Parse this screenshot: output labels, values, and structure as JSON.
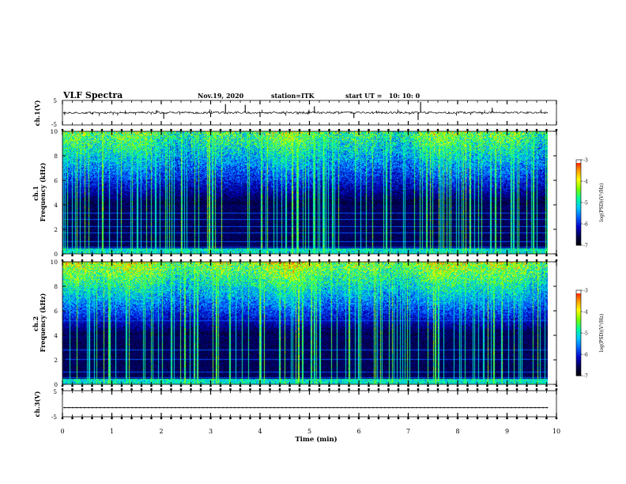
{
  "header": {
    "title": "VLF Spectra",
    "date": "Nov.19, 2020",
    "station": "station=ITK",
    "start_ut": "start UT =   10: 10: 0"
  },
  "chart_data": [
    {
      "type": "line",
      "name": "ch1-waveform",
      "ylabel": "ch.1(V)",
      "ylim": [
        -5,
        5
      ],
      "yticks": [
        "5",
        "-5"
      ],
      "xlim": [
        0,
        10
      ],
      "baseline": 0,
      "spikes": [
        {
          "x": 3.3,
          "y": 3.5
        },
        {
          "x": 3.7,
          "y": 3.2
        },
        {
          "x": 5.1,
          "y": 2.6
        },
        {
          "x": 5.9,
          "y": -2.2
        },
        {
          "x": 7.25,
          "y": 4.4
        },
        {
          "x": 8.7,
          "y": 2.0
        },
        {
          "x": 2.05,
          "y": -2.5
        },
        {
          "x": 3.0,
          "y": -1.8
        },
        {
          "x": 4.0,
          "y": -1.8
        },
        {
          "x": 7.2,
          "y": -3.0
        }
      ]
    },
    {
      "type": "heatmap",
      "name": "ch1-spectrogram",
      "ylabel": "ch.1\nFrequency (kHz)",
      "ylim": [
        0,
        10
      ],
      "yticks": [
        "0",
        "2",
        "4",
        "6",
        "8",
        "10"
      ],
      "xlim": [
        0,
        10
      ],
      "tones_khz": [
        0.5,
        1.0,
        1.7,
        2.2,
        2.8,
        3.3
      ],
      "colorbar": {
        "label": "log(PSD)(V²/Hz)",
        "ticks": [
          "-3",
          "-4",
          "-5",
          "-6",
          "-7"
        ]
      }
    },
    {
      "type": "heatmap",
      "name": "ch2-spectrogram",
      "ylabel": "ch.2\nFrequency (kHz)",
      "ylim": [
        0,
        10
      ],
      "yticks": [
        "0",
        "2",
        "4",
        "6",
        "8",
        "10"
      ],
      "xlim": [
        0,
        10
      ],
      "tones_khz": [
        0.5,
        1.0,
        2.0,
        2.8,
        5.2
      ],
      "colorbar": {
        "label": "log(PSD)(V²/Hz)",
        "ticks": [
          "-3",
          "-4",
          "-5",
          "-6",
          "-7"
        ]
      }
    },
    {
      "type": "line",
      "name": "ch3-waveform",
      "ylabel": "ch.3(V)",
      "ylim": [
        -5,
        5
      ],
      "yticks": [
        "5",
        "-5"
      ],
      "xlim": [
        0,
        10
      ],
      "baseline": -1.5
    }
  ],
  "xaxis": {
    "label": "Time (min)",
    "ticks": [
      "0",
      "1",
      "2",
      "3",
      "4",
      "5",
      "6",
      "7",
      "8",
      "9",
      "10"
    ],
    "data_end": 9.83
  },
  "colors": {
    "colormap": [
      "#000000",
      "#00004a",
      "#0000c8",
      "#0060ff",
      "#00c8ff",
      "#00ff9a",
      "#7aff00",
      "#ffff00",
      "#ff9600",
      "#ff0000",
      "#ffffff"
    ]
  }
}
